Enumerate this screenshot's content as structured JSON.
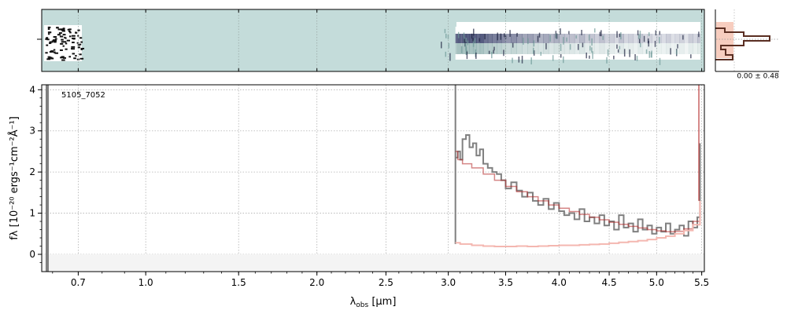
{
  "object_id": "5105_7052",
  "noise_label": "0.00 ± 0.48",
  "colors": {
    "flux": "#808080",
    "model": "#b22222",
    "error": "#f4b7b0",
    "twod_background": "#c4dcda",
    "histogram_line": "#5a2e22",
    "histogram_fill": "#f7cdbf"
  },
  "chart_data": {
    "type": "line",
    "x_axis": {
      "label": "λobs [μm]",
      "scale": "sqrt",
      "range": [
        0.56,
        5.53
      ],
      "ticks": [
        0.7,
        1.0,
        1.5,
        2.0,
        2.5,
        3.0,
        3.5,
        4.0,
        4.5,
        5.0,
        5.5
      ],
      "tick_labels": [
        "0.7",
        "1.0",
        "1.5",
        "2.0",
        "2.5",
        "3.0",
        "3.5",
        "4.0",
        "4.5",
        "5.0",
        "5.5"
      ]
    },
    "y_axis": {
      "label": "fλ [10⁻²⁰ ergs⁻¹cm⁻²Å⁻¹]",
      "range": [
        -0.42,
        4.12
      ],
      "ticks": [
        0,
        1,
        2,
        3,
        4
      ],
      "tick_labels": [
        "0",
        "1",
        "2",
        "3",
        "4"
      ]
    },
    "grid": true,
    "series": [
      {
        "role": "flux",
        "x": [
          3.06,
          3.08,
          3.1,
          3.12,
          3.15,
          3.18,
          3.21,
          3.24,
          3.27,
          3.3,
          3.34,
          3.38,
          3.42,
          3.46,
          3.5,
          3.55,
          3.6,
          3.65,
          3.7,
          3.75,
          3.8,
          3.85,
          3.9,
          3.95,
          4.0,
          4.05,
          4.1,
          4.15,
          4.2,
          4.25,
          4.3,
          4.35,
          4.4,
          4.45,
          4.5,
          4.55,
          4.6,
          4.65,
          4.7,
          4.75,
          4.8,
          4.85,
          4.9,
          4.95,
          5.0,
          5.05,
          5.1,
          5.15,
          5.2,
          5.25,
          5.3,
          5.35,
          5.4,
          5.45,
          5.48
        ],
        "y": [
          2.35,
          2.5,
          2.3,
          2.8,
          2.9,
          2.6,
          2.7,
          2.4,
          2.55,
          2.2,
          2.1,
          2.0,
          1.95,
          1.8,
          1.6,
          1.75,
          1.55,
          1.4,
          1.5,
          1.3,
          1.2,
          1.35,
          1.1,
          1.25,
          1.05,
          0.95,
          1.0,
          0.85,
          1.1,
          0.8,
          0.9,
          0.75,
          0.95,
          0.7,
          0.8,
          0.6,
          0.95,
          0.65,
          0.75,
          0.55,
          0.85,
          0.6,
          0.7,
          0.5,
          0.65,
          0.55,
          0.75,
          0.5,
          0.6,
          0.7,
          0.45,
          0.8,
          0.65,
          0.9,
          2.7
        ]
      },
      {
        "role": "model",
        "x": [
          3.06,
          3.08,
          3.12,
          3.2,
          3.3,
          3.4,
          3.5,
          3.6,
          3.7,
          3.8,
          3.9,
          4.0,
          4.1,
          4.2,
          4.3,
          4.4,
          4.5,
          4.6,
          4.7,
          4.8,
          4.9,
          5.0,
          5.1,
          5.2,
          5.3,
          5.4,
          5.48
        ],
        "y": [
          2.5,
          2.3,
          2.2,
          2.1,
          1.95,
          1.8,
          1.65,
          1.52,
          1.4,
          1.3,
          1.2,
          1.12,
          1.04,
          0.97,
          0.9,
          0.84,
          0.78,
          0.73,
          0.68,
          0.64,
          0.6,
          0.57,
          0.55,
          0.56,
          0.62,
          0.8,
          1.3
        ]
      },
      {
        "role": "error",
        "x": [
          3.06,
          3.1,
          3.2,
          3.3,
          3.4,
          3.5,
          3.6,
          3.7,
          3.8,
          3.9,
          4.0,
          4.1,
          4.2,
          4.3,
          4.4,
          4.5,
          4.6,
          4.7,
          4.8,
          4.9,
          5.0,
          5.1,
          5.2,
          5.3,
          5.4,
          5.48
        ],
        "y": [
          0.28,
          0.25,
          0.22,
          0.2,
          0.19,
          0.19,
          0.2,
          0.19,
          0.2,
          0.21,
          0.22,
          0.22,
          0.23,
          0.24,
          0.25,
          0.27,
          0.29,
          0.31,
          0.33,
          0.36,
          0.4,
          0.44,
          0.5,
          0.58,
          0.72,
          1.3
        ]
      }
    ]
  }
}
